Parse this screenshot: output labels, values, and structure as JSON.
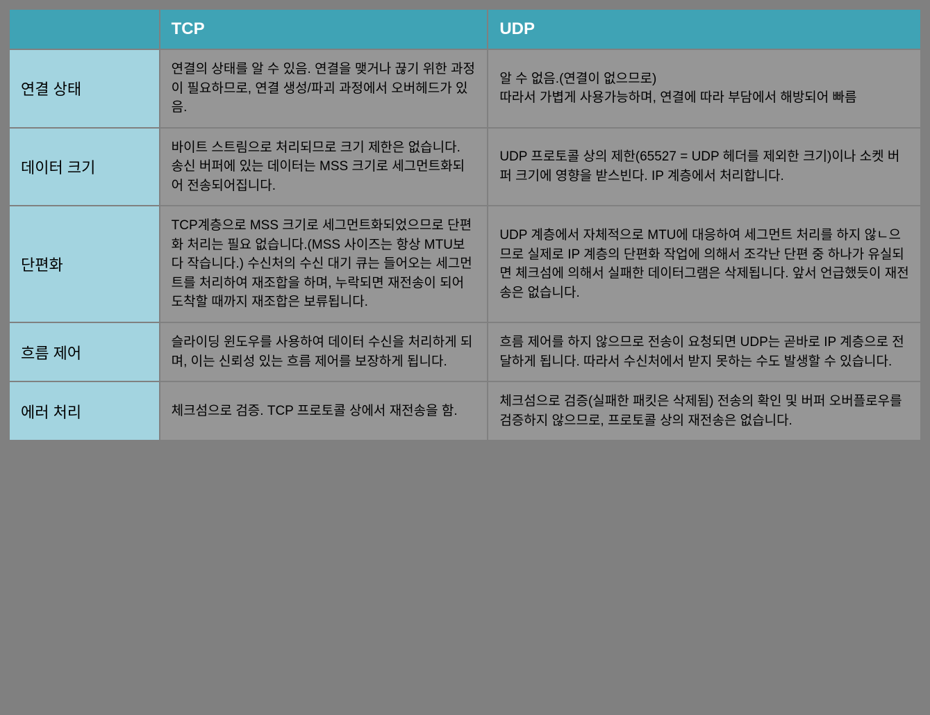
{
  "table": {
    "type": "table",
    "columns": [
      {
        "key": "feature",
        "label": "",
        "width_pct": 16.5
      },
      {
        "key": "tcp",
        "label": "TCP",
        "width_pct": 36
      },
      {
        "key": "udp",
        "label": "UDP",
        "width_pct": 47.5
      }
    ],
    "colors": {
      "page_background": "#808080",
      "header_background": "#3fa3b5",
      "header_text": "#ffffff",
      "row_header_background": "#a3d4e0",
      "row_header_text": "#000000",
      "body_cell_background": "#969696",
      "body_cell_text": "#000000",
      "border_color": "#808080"
    },
    "typography": {
      "header_fontsize_pt": 18,
      "row_header_fontsize_pt": 17,
      "body_fontsize_pt": 14,
      "font_family": "Malgun Gothic"
    },
    "rows": [
      {
        "feature": "연결 상태",
        "tcp": "연결의 상태를 알 수 있음. 연결을 맺거나 끊기 위한 과정이 필요하므로, 연결 생성/파괴 과정에서 오버헤드가 있음.",
        "udp": "알 수 없음.(연결이 없으므로)\n따라서 가볍게 사용가능하며, 연결에 따라 부담에서 해방되어 빠름"
      },
      {
        "feature": "데이터 크기",
        "tcp": "바이트 스트림으로 처리되므로 크기 제한은 없습니다. 송신 버퍼에 있는 데이터는 MSS 크기로 세그먼트화되어 전송되어집니다.",
        "udp": "UDP 프로토콜 상의 제한(65527 = UDP 헤더를 제외한 크기)이나 소켓 버퍼 크기에 영향을 받스빈다. IP 계층에서 처리합니다."
      },
      {
        "feature": "단편화",
        "tcp": "TCP계층으로 MSS 크기로 세그먼트화되었으므로 단편화 처리는 필요 없습니다.(MSS 사이즈는 항상 MTU보다 작습니다.) 수신처의 수신 대기 큐는 들어오는 세그먼트를 처리하여 재조합을 하며, 누락되면 재전송이 되어 도착할 때까지 재조합은 보류됩니다.",
        "udp": "UDP 계층에서 자체적으로 MTU에 대응하여 세그먼트 처리를 하지 않ㄴ으므로 실제로 IP 계층의 단편화 작업에 의해서 조각난 단편 중 하나가 유실되면 체크섬에 의해서 실패한 데이터그램은 삭제됩니다. 앞서 언급했듯이 재전송은 없습니다."
      },
      {
        "feature": "흐름 제어",
        "tcp": "슬라이딩 윈도우를 사용하여 데이터 수신을 처리하게 되며, 이는 신뢰성 있는 흐름 제어를 보장하게 됩니다.",
        "udp": "흐름 제어를 하지 않으므로 전송이 요청되면 UDP는 곧바로 IP 계층으로 전달하게 됩니다. 따라서 수신처에서 받지 못하는 수도 발생할 수 있습니다."
      },
      {
        "feature": "에러 처리",
        "tcp": "체크섬으로 검증. TCP 프로토콜 상에서 재전송을 함.",
        "udp": "체크섬으로 검증(실패한 패킷은 삭제됨) 전송의 확인 및 버퍼 오버플로우를 검증하지 않으므로, 프로토콜 상의 재전송은 없습니다."
      }
    ]
  }
}
